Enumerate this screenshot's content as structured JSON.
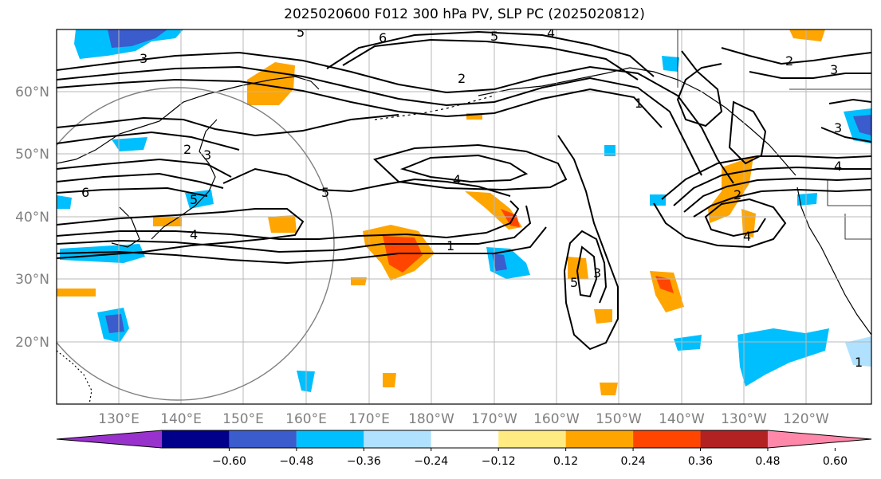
{
  "title": "2025020600 F012 300 hPa PV, SLP PC (2025020812)",
  "map": {
    "lat_labels": [
      "60°N",
      "50°N",
      "40°N",
      "30°N",
      "20°N"
    ],
    "lon_labels": [
      "130°E",
      "140°E",
      "150°E",
      "160°E",
      "170°E",
      "180°W",
      "170°W",
      "160°W",
      "150°W",
      "140°W",
      "130°W",
      "120°W"
    ],
    "contour_labels": [
      "3",
      "6",
      "5",
      "5",
      "4",
      "2",
      "3",
      "3",
      "2",
      "6",
      "5",
      "5",
      "4",
      "1",
      "4",
      "2",
      "3",
      "2",
      "4",
      "3",
      "1",
      "4",
      "1",
      "5"
    ]
  },
  "colorbar": {
    "colors": [
      "#9932cc",
      "#00008b",
      "#3a5ccc",
      "#00bfff",
      "#b0e2ff",
      "#ffffff",
      "#ffeb82",
      "#ffa500",
      "#ff4500",
      "#b22222",
      "#ff88aa"
    ],
    "tick_labels": [
      "−0.60",
      "−0.48",
      "−0.36",
      "−0.24",
      "−0.12",
      "0.12",
      "0.24",
      "0.36",
      "0.48",
      "0.60"
    ]
  }
}
